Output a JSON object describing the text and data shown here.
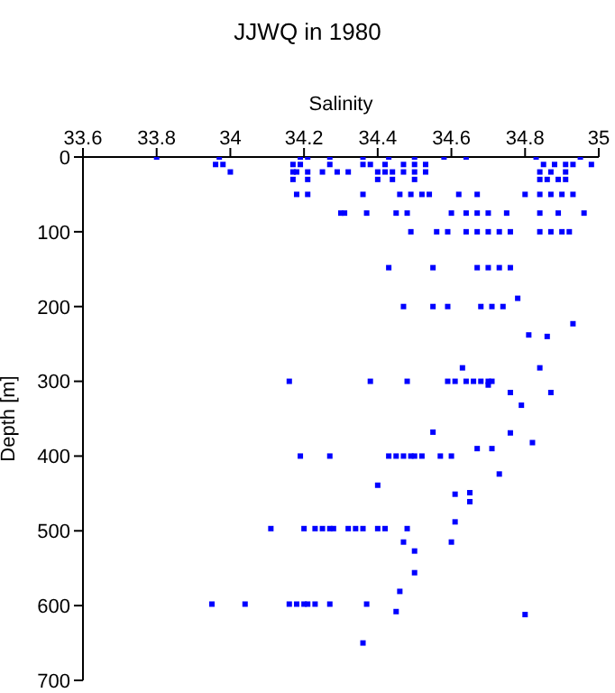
{
  "chart_data": {
    "type": "scatter",
    "title": "JJWQ in 1980",
    "xlabel": "Salinity",
    "ylabel": "Depth [m]",
    "xlim": [
      33.6,
      35
    ],
    "xticks": [
      33.6,
      33.8,
      34,
      34.2,
      34.4,
      34.6,
      34.8,
      35
    ],
    "ylim": [
      700,
      0
    ],
    "yticks": [
      0,
      100,
      200,
      300,
      400,
      500,
      600,
      700
    ],
    "marker": "square",
    "series": [
      {
        "color": "#0000ff",
        "x": [
          33.8,
          33.97,
          34.19,
          34.21,
          34.27,
          34.36,
          34.43,
          34.5,
          34.58,
          34.64,
          34.83,
          34.95,
          33.96,
          33.98,
          34.17,
          34.19,
          34.27,
          34.36,
          34.38,
          34.42,
          34.47,
          34.5,
          34.53,
          34.85,
          34.88,
          34.91,
          34.93,
          34.98,
          34.0,
          34.17,
          34.18,
          34.21,
          34.25,
          34.29,
          34.32,
          34.4,
          34.42,
          34.44,
          34.47,
          34.5,
          34.53,
          34.84,
          34.87,
          34.91,
          34.17,
          34.21,
          34.4,
          34.44,
          34.5,
          34.84,
          34.86,
          34.89,
          34.91,
          34.18,
          34.21,
          34.36,
          34.46,
          34.49,
          34.52,
          34.54,
          34.62,
          34.67,
          34.8,
          34.84,
          34.87,
          34.9,
          34.93,
          34.3,
          34.31,
          34.37,
          34.45,
          34.48,
          34.6,
          34.64,
          34.67,
          34.7,
          34.75,
          34.84,
          34.89,
          34.96,
          34.49,
          34.56,
          34.59,
          34.64,
          34.67,
          34.7,
          34.73,
          34.76,
          34.84,
          34.87,
          34.9,
          34.92,
          34.43,
          34.55,
          34.67,
          34.7,
          34.73,
          34.76,
          34.78,
          34.47,
          34.55,
          34.59,
          34.68,
          34.71,
          34.74,
          34.93,
          34.81,
          34.86,
          34.63,
          34.84,
          34.16,
          34.38,
          34.48,
          34.59,
          34.61,
          34.64,
          34.66,
          34.68,
          34.7,
          34.71,
          34.7,
          34.76,
          34.87,
          34.79,
          34.55,
          34.76,
          34.82,
          34.67,
          34.71,
          34.19,
          34.27,
          34.43,
          34.45,
          34.47,
          34.49,
          34.5,
          34.52,
          34.57,
          34.6,
          34.73,
          34.4,
          34.65,
          34.61,
          34.65,
          34.61,
          34.11,
          34.2,
          34.23,
          34.25,
          34.27,
          34.28,
          34.32,
          34.34,
          34.36,
          34.4,
          34.42,
          34.48,
          34.47,
          34.6,
          34.5,
          34.5,
          34.46,
          33.95,
          34.04,
          34.16,
          34.18,
          34.2,
          34.21,
          34.23,
          34.27,
          34.37,
          34.45,
          34.8,
          34.36
        ],
        "values": [
          0,
          0,
          0,
          0,
          0,
          0,
          0,
          0,
          0,
          0,
          0,
          0,
          10,
          10,
          10,
          10,
          10,
          10,
          10,
          10,
          10,
          10,
          10,
          10,
          10,
          10,
          10,
          10,
          20,
          20,
          20,
          20,
          20,
          20,
          20,
          20,
          20,
          20,
          20,
          20,
          20,
          20,
          20,
          20,
          30,
          30,
          30,
          30,
          30,
          30,
          30,
          30,
          30,
          50,
          50,
          50,
          50,
          50,
          50,
          50,
          50,
          50,
          50,
          50,
          50,
          50,
          50,
          75,
          75,
          75,
          75,
          75,
          75,
          75,
          75,
          75,
          75,
          75,
          75,
          75,
          100,
          100,
          100,
          100,
          100,
          100,
          100,
          100,
          100,
          100,
          100,
          100,
          148,
          148,
          148,
          148,
          148,
          148,
          189,
          200,
          200,
          200,
          200,
          200,
          200,
          223,
          238,
          240,
          282,
          282,
          300,
          300,
          300,
          300,
          300,
          300,
          300,
          300,
          300,
          300,
          305,
          315,
          315,
          332,
          368,
          369,
          382,
          390,
          390,
          400,
          400,
          400,
          400,
          400,
          400,
          400,
          400,
          400,
          400,
          424,
          439,
          449,
          451,
          461,
          488,
          497,
          497,
          497,
          497,
          497,
          497,
          497,
          497,
          497,
          497,
          497,
          497,
          515,
          515,
          527,
          556,
          581,
          598,
          598,
          598,
          598,
          598,
          598,
          598,
          598,
          598,
          608,
          612,
          650
        ]
      }
    ]
  }
}
